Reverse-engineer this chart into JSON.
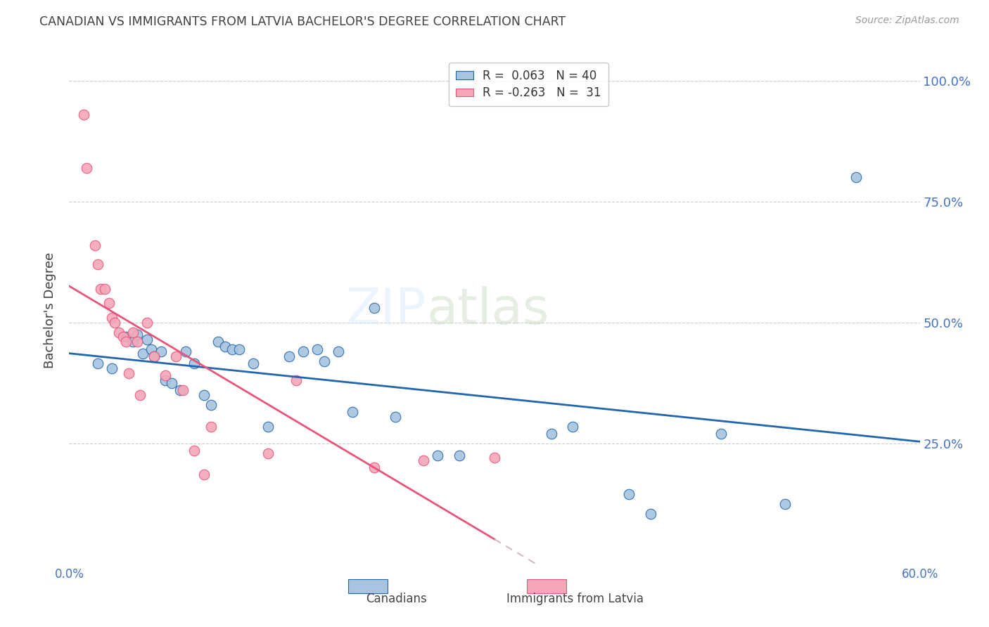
{
  "title": "CANADIAN VS IMMIGRANTS FROM LATVIA BACHELOR'S DEGREE CORRELATION CHART",
  "source": "Source: ZipAtlas.com",
  "ylabel": "Bachelor's Degree",
  "ytick_labels": [
    "100.0%",
    "75.0%",
    "50.0%",
    "25.0%"
  ],
  "ytick_values": [
    1.0,
    0.75,
    0.5,
    0.25
  ],
  "xlim": [
    0.0,
    0.6
  ],
  "ylim": [
    0.0,
    1.05
  ],
  "canadian_R": 0.063,
  "canadian_N": 40,
  "immigrant_R": -0.263,
  "immigrant_N": 31,
  "canadian_color": "#a8c4e0",
  "immigrant_color": "#f4a7b9",
  "canadian_line_color": "#2166ac",
  "immigrant_line_color": "#e8547a",
  "immigrant_line_dashed_color": "#d4b8c0",
  "canadian_x": [
    0.02,
    0.03,
    0.04,
    0.045,
    0.048,
    0.052,
    0.055,
    0.058,
    0.06,
    0.065,
    0.068,
    0.072,
    0.078,
    0.082,
    0.088,
    0.095,
    0.1,
    0.105,
    0.11,
    0.115,
    0.12,
    0.13,
    0.14,
    0.155,
    0.165,
    0.175,
    0.18,
    0.19,
    0.2,
    0.215,
    0.23,
    0.26,
    0.275,
    0.34,
    0.355,
    0.395,
    0.41,
    0.46,
    0.505,
    0.555
  ],
  "canadian_y": [
    0.415,
    0.405,
    0.47,
    0.46,
    0.475,
    0.435,
    0.465,
    0.445,
    0.43,
    0.44,
    0.38,
    0.375,
    0.36,
    0.44,
    0.415,
    0.35,
    0.33,
    0.46,
    0.45,
    0.445,
    0.445,
    0.415,
    0.285,
    0.43,
    0.44,
    0.445,
    0.42,
    0.44,
    0.315,
    0.53,
    0.305,
    0.225,
    0.225,
    0.27,
    0.285,
    0.145,
    0.105,
    0.27,
    0.125,
    0.8
  ],
  "immigrant_x": [
    0.01,
    0.012,
    0.018,
    0.02,
    0.022,
    0.025,
    0.028,
    0.03,
    0.032,
    0.035,
    0.038,
    0.04,
    0.042,
    0.045,
    0.048,
    0.05,
    0.055,
    0.06,
    0.068,
    0.075,
    0.08,
    0.088,
    0.095,
    0.1,
    0.14,
    0.16,
    0.215,
    0.25,
    0.3
  ],
  "immigrant_y": [
    0.93,
    0.82,
    0.66,
    0.62,
    0.57,
    0.57,
    0.54,
    0.51,
    0.5,
    0.48,
    0.47,
    0.46,
    0.395,
    0.48,
    0.46,
    0.35,
    0.5,
    0.43,
    0.39,
    0.43,
    0.36,
    0.235,
    0.185,
    0.285,
    0.23,
    0.38,
    0.2,
    0.215,
    0.22
  ],
  "legend_box_color": "#ffffff",
  "legend_border_color": "#bbbbbb",
  "grid_color": "#cccccc",
  "background_color": "#ffffff",
  "title_color": "#404040",
  "axis_tick_color": "#4472c4",
  "right_tick_color": "#4472c4"
}
